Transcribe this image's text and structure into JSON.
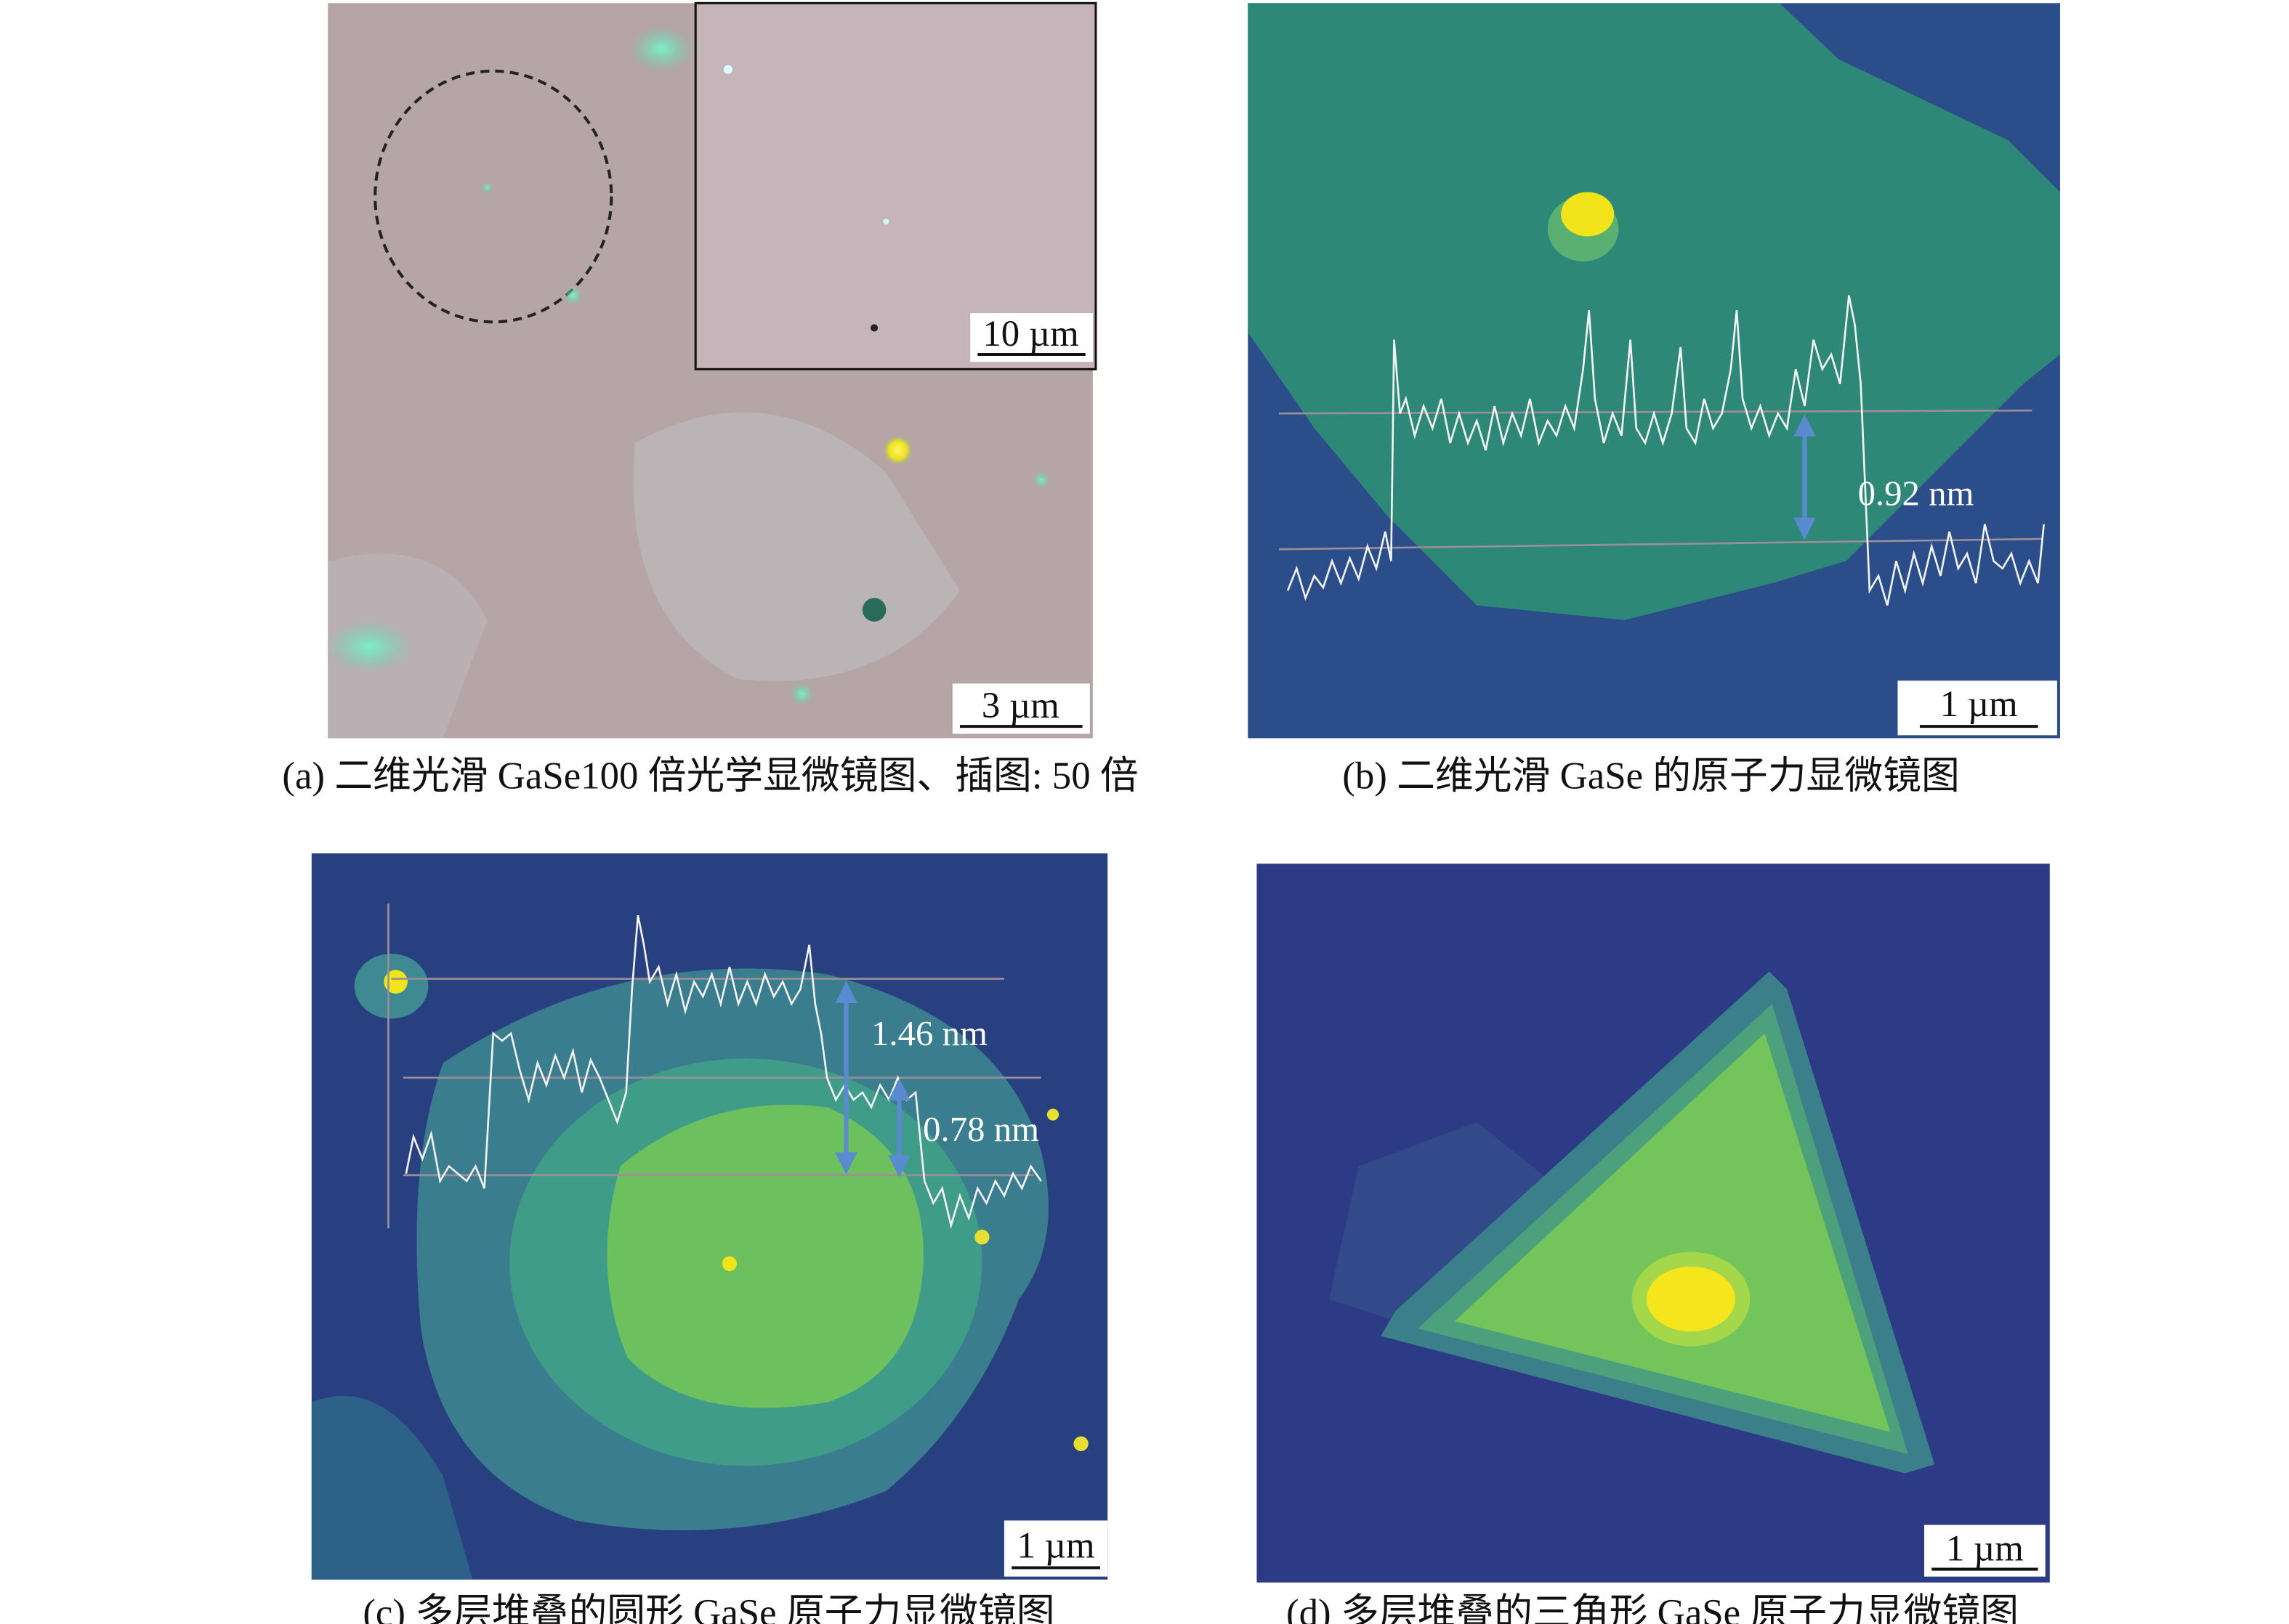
{
  "panels": [
    {
      "caption": "(a) 二维光滑 GaSe100 倍光学显微镜图、插图: 50 倍",
      "scale_bar": "3 µm",
      "inset_scale_bar": "10 µm"
    },
    {
      "caption": "(b) 二维光滑 GaSe 的原子力显微镜图",
      "scale_bar": "1 µm",
      "annotations": [
        "0.92 nm"
      ]
    },
    {
      "caption": "(c) 多层堆叠的圆形 GaSe 原子力显微镜图",
      "scale_bar": "1 µm",
      "annotations": [
        "1.46 nm",
        "0.78 nm"
      ]
    },
    {
      "caption": "(d) 多层堆叠的三角形 GaSe 原子力显微镜图",
      "scale_bar": "1 µm"
    }
  ]
}
